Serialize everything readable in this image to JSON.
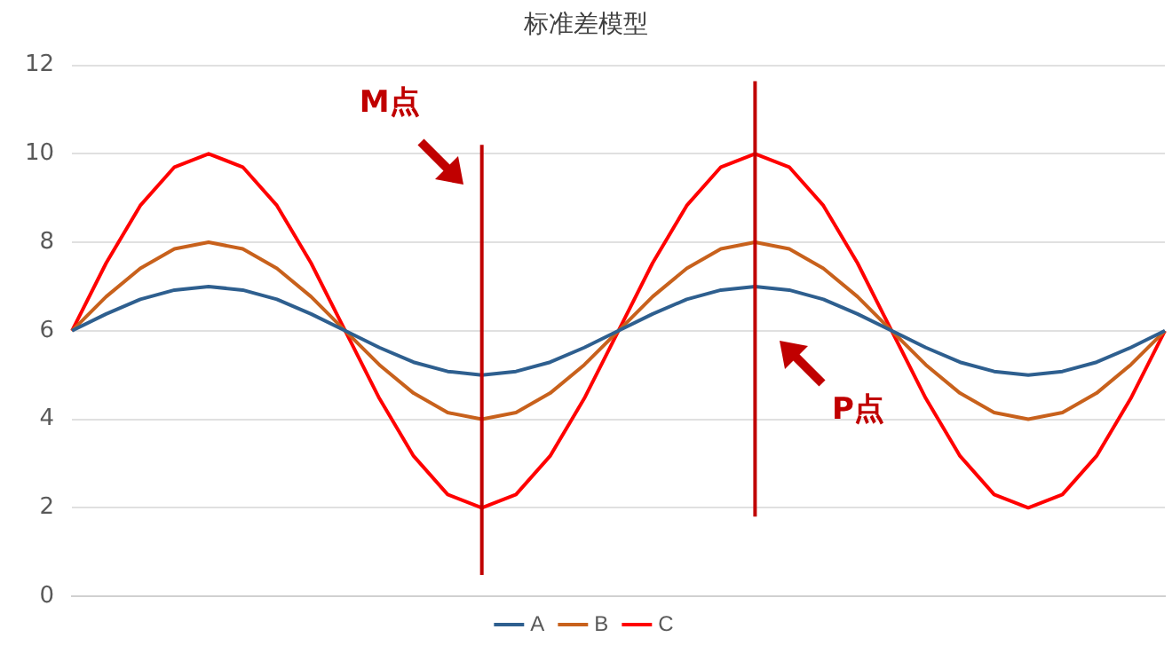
{
  "chart_data": {
    "type": "line",
    "title": "标准差模型",
    "categories": [
      null,
      null,
      null,
      null,
      null,
      null,
      null,
      null,
      null,
      null,
      null,
      null,
      null,
      null,
      null,
      null,
      null,
      null,
      null,
      null,
      null,
      null,
      null,
      null,
      null,
      null,
      null,
      null,
      null,
      null,
      null,
      null,
      null
    ],
    "ylim": [
      0,
      12
    ],
    "yticks": [
      0,
      2,
      4,
      6,
      8,
      10,
      12
    ],
    "tick_labels": "y",
    "grid": "y",
    "legend": "bottom",
    "marker": "none",
    "line_style": "solid",
    "series": [
      {
        "name": "A",
        "color": "#2e5f8f",
        "values": [
          6,
          6.38,
          6.71,
          6.92,
          7,
          6.92,
          6.71,
          6.38,
          6,
          5.62,
          5.29,
          5.08,
          5,
          5.08,
          5.29,
          5.62,
          6,
          6.38,
          6.71,
          6.92,
          7,
          6.92,
          6.71,
          6.38,
          6,
          5.62,
          5.29,
          5.08,
          5,
          5.08,
          5.29,
          5.62,
          6
        ]
      },
      {
        "name": "B",
        "color": "#c8611c",
        "values": [
          6,
          6.77,
          7.41,
          7.85,
          8,
          7.85,
          7.41,
          6.77,
          6,
          5.23,
          4.59,
          4.15,
          4,
          4.15,
          4.59,
          5.23,
          6,
          6.77,
          7.41,
          7.85,
          8,
          7.85,
          7.41,
          6.77,
          6,
          5.23,
          4.59,
          4.15,
          4,
          4.15,
          4.59,
          5.23,
          6
        ]
      },
      {
        "name": "C",
        "color": "#ff0000",
        "values": [
          6,
          7.53,
          8.83,
          9.7,
          10,
          9.7,
          8.83,
          7.53,
          6,
          4.47,
          3.17,
          2.3,
          2,
          2.3,
          3.17,
          4.47,
          6,
          7.53,
          8.83,
          9.7,
          10,
          9.7,
          8.83,
          7.53,
          6,
          4.47,
          3.17,
          2.3,
          2,
          2.3,
          3.17,
          4.47,
          6
        ]
      }
    ],
    "annotations": [
      "M点",
      "P点"
    ]
  }
}
